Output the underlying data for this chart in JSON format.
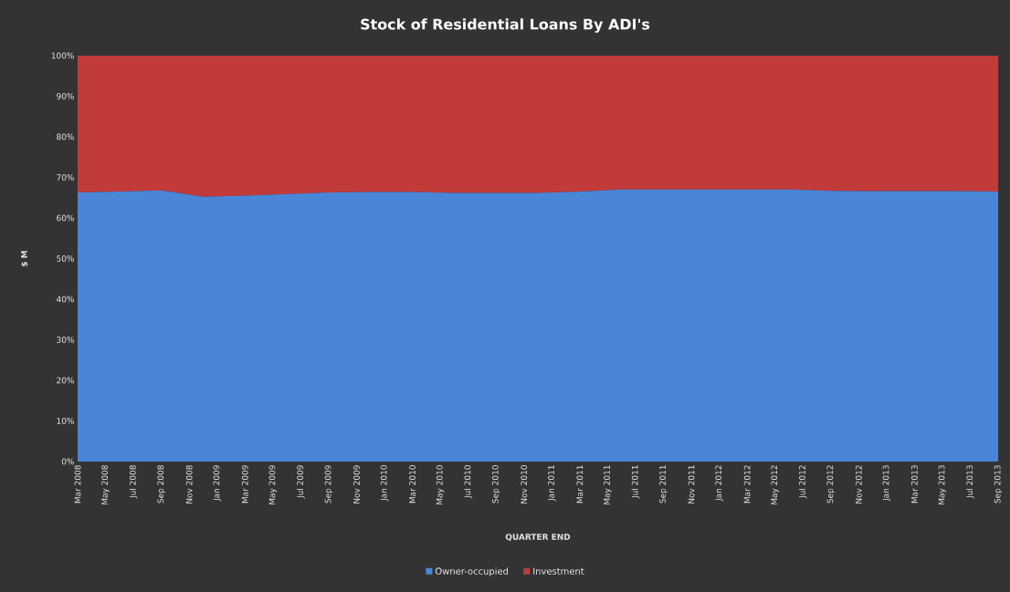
{
  "chart_data": {
    "type": "area",
    "stacked": true,
    "title": "Stock of Residential Loans By ADI's",
    "xlabel": "QUARTER END",
    "ylabel": "$ M",
    "legend": "bottom",
    "x": [
      "2008-03",
      "2008-06",
      "2008-09",
      "2008-12",
      "2009-03",
      "2009-06",
      "2009-09",
      "2009-12",
      "2010-03",
      "2010-06",
      "2010-09",
      "2010-12",
      "2011-03",
      "2011-06",
      "2011-09",
      "2011-12",
      "2012-03",
      "2012-06",
      "2012-09",
      "2012-12",
      "2013-03",
      "2013-06",
      "2013-09"
    ],
    "series": [
      {
        "name": "Owner-occupied",
        "color": "#4a86d8",
        "values": [
          66.3,
          66.5,
          66.8,
          65.2,
          65.5,
          65.9,
          66.3,
          66.4,
          66.4,
          66.2,
          66.2,
          66.2,
          66.5,
          67.0,
          67.0,
          67.0,
          67.0,
          67.0,
          66.7,
          66.6,
          66.6,
          66.6,
          66.5
        ]
      },
      {
        "name": "Investment",
        "color": "#c23b3b",
        "values": [
          33.7,
          33.5,
          33.2,
          34.8,
          34.5,
          34.1,
          33.7,
          33.6,
          33.6,
          33.8,
          33.8,
          33.8,
          33.5,
          33.0,
          33.0,
          33.0,
          33.0,
          33.0,
          33.3,
          33.4,
          33.4,
          33.4,
          33.5
        ]
      }
    ],
    "xlim": [
      "2008-03",
      "2013-09"
    ],
    "xticks": [
      {
        "value": "2008-03",
        "label": "Mar 2008"
      },
      {
        "value": "2008-05",
        "label": "May 2008"
      },
      {
        "value": "2008-07",
        "label": "Jul 2008"
      },
      {
        "value": "2008-09",
        "label": "Sep 2008"
      },
      {
        "value": "2008-11",
        "label": "Nov 2008"
      },
      {
        "value": "2009-01",
        "label": "Jan 2009"
      },
      {
        "value": "2009-03",
        "label": "Mar 2009"
      },
      {
        "value": "2009-05",
        "label": "May 2009"
      },
      {
        "value": "2009-07",
        "label": "Jul 2009"
      },
      {
        "value": "2009-09",
        "label": "Sep 2009"
      },
      {
        "value": "2009-11",
        "label": "Nov 2009"
      },
      {
        "value": "2010-01",
        "label": "Jan 2010"
      },
      {
        "value": "2010-03",
        "label": "Mar 2010"
      },
      {
        "value": "2010-05",
        "label": "May 2010"
      },
      {
        "value": "2010-07",
        "label": "Jul 2010"
      },
      {
        "value": "2010-09",
        "label": "Sep 2010"
      },
      {
        "value": "2010-11",
        "label": "Nov 2010"
      },
      {
        "value": "2011-01",
        "label": "Jan 2011"
      },
      {
        "value": "2011-03",
        "label": "Mar 2011"
      },
      {
        "value": "2011-05",
        "label": "May 2011"
      },
      {
        "value": "2011-07",
        "label": "Jul 2011"
      },
      {
        "value": "2011-09",
        "label": "Sep 2011"
      },
      {
        "value": "2011-11",
        "label": "Nov 2011"
      },
      {
        "value": "2012-01",
        "label": "Jan 2012"
      },
      {
        "value": "2012-03",
        "label": "Mar 2012"
      },
      {
        "value": "2012-05",
        "label": "May 2012"
      },
      {
        "value": "2012-07",
        "label": "Jul 2012"
      },
      {
        "value": "2012-09",
        "label": "Sep 2012"
      },
      {
        "value": "2012-11",
        "label": "Nov 2012"
      },
      {
        "value": "2013-01",
        "label": "Jan 2013"
      },
      {
        "value": "2013-03",
        "label": "Mar 2013"
      },
      {
        "value": "2013-05",
        "label": "May 2013"
      },
      {
        "value": "2013-07",
        "label": "Jul 2013"
      },
      {
        "value": "2013-09",
        "label": "Sep 2013"
      }
    ],
    "ylim": [
      0,
      100
    ],
    "yticks": [
      {
        "value": 0,
        "label": "0%"
      },
      {
        "value": 10,
        "label": "10%"
      },
      {
        "value": 20,
        "label": "20%"
      },
      {
        "value": 30,
        "label": "30%"
      },
      {
        "value": 40,
        "label": "40%"
      },
      {
        "value": 50,
        "label": "50%"
      },
      {
        "value": 60,
        "label": "60%"
      },
      {
        "value": 70,
        "label": "70%"
      },
      {
        "value": 80,
        "label": "80%"
      },
      {
        "value": 90,
        "label": "90%"
      },
      {
        "value": 100,
        "label": "100%"
      }
    ]
  }
}
